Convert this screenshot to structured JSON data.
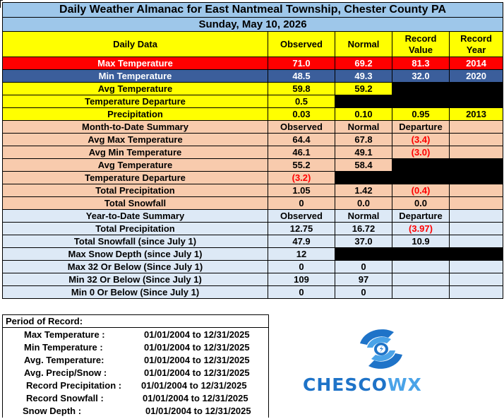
{
  "title": "Daily Weather Almanac for East Nantmeal Township, Chester County PA",
  "date": "Sunday, May 10, 2026",
  "daily": {
    "header": {
      "label": "Daily Data",
      "observed": "Observed",
      "normal": "Normal",
      "record_value": "Record Value",
      "record_year": "Record Year"
    },
    "max_temp": {
      "label": "Max Temperature",
      "observed": "71.0",
      "normal": "69.2",
      "record_value": "81.3",
      "record_year": "2014"
    },
    "min_temp": {
      "label": "Min Temperature",
      "observed": "48.5",
      "normal": "49.3",
      "record_value": "32.0",
      "record_year": "2020"
    },
    "avg_temp": {
      "label": "Avg Temperature",
      "observed": "59.8",
      "normal": "59.2"
    },
    "temp_departure": {
      "label": "Temperature Departure",
      "observed": "0.5"
    },
    "precip": {
      "label": "Precipitation",
      "observed": "0.03",
      "normal": "0.10",
      "record_value": "0.95",
      "record_year": "2013"
    }
  },
  "mtd": {
    "header": {
      "label": "Month-to-Date Summary",
      "observed": "Observed",
      "normal": "Normal",
      "departure": "Departure"
    },
    "rows": [
      {
        "label": "Avg Max Temperature",
        "observed": "64.4",
        "normal": "67.8",
        "departure": "(3.4)"
      },
      {
        "label": "Avg Min Temperature",
        "observed": "46.1",
        "normal": "49.1",
        "departure": "(3.0)"
      },
      {
        "label": "Avg Temperature",
        "observed": "55.2",
        "normal": "58.4"
      },
      {
        "label": "Temperature Departure",
        "observed": "(3.2)"
      },
      {
        "label": "Total Precipitation",
        "observed": "1.05",
        "normal": "1.42",
        "departure": "(0.4)"
      },
      {
        "label": "Total Snowfall",
        "observed": "0",
        "normal": "0.0",
        "departure": "0.0"
      }
    ]
  },
  "ytd": {
    "header": {
      "label": "Year-to-Date Summary",
      "observed": "Observed",
      "normal": "Normal",
      "departure": "Departure"
    },
    "rows": [
      {
        "label": "Total Precipitation",
        "observed": "12.75",
        "normal": "16.72",
        "departure": "(3.97)"
      },
      {
        "label": "Total Snowfall (since July 1)",
        "observed": "47.9",
        "normal": "37.0",
        "departure": "10.9"
      },
      {
        "label": "Max Snow Depth (since July 1)",
        "observed": "12"
      },
      {
        "label": "Max 32 Or Below (Since July 1)",
        "observed": "0",
        "normal": "0"
      },
      {
        "label": "Min 32 Or Below (Since July 1)",
        "observed": "109",
        "normal": "97"
      },
      {
        "label": "Min 0 Or Below (Since July 1)",
        "observed": "0",
        "normal": "0"
      }
    ]
  },
  "period_of_record": {
    "heading": "Period of Record:",
    "rows": [
      {
        "label": "Max Temperature :",
        "range": "01/01/2004 to 12/31/2025"
      },
      {
        "label": "Min Temperature :",
        "range": "01/01/2004 to 12/31/2025"
      },
      {
        "label": "Avg. Temperature:",
        "range": "01/01/2004 to 12/31/2025"
      },
      {
        "label": "Avg. Precip/Snow :",
        "range": "01/01/2004 to 12/31/2025"
      },
      {
        "label": "Record Precipitation :",
        "range": "01/01/2004 to 12/31/2025"
      },
      {
        "label": "Record Snowfall :",
        "range": "01/01/2004 to 12/31/2025"
      },
      {
        "label": "Snow Depth :",
        "range": "01/01/2004 to 12/31/2025"
      }
    ]
  },
  "logo": {
    "text_a": "CHESCO",
    "text_b": "WX"
  },
  "colors": {
    "header_blue": "#9ec7ea",
    "yellow": "#ffff00",
    "red": "#ff0000",
    "navy": "#3b5e9b",
    "peach": "#f8cbad",
    "light_blue": "#dde9f6",
    "logo_blue": "#1e73c8"
  }
}
